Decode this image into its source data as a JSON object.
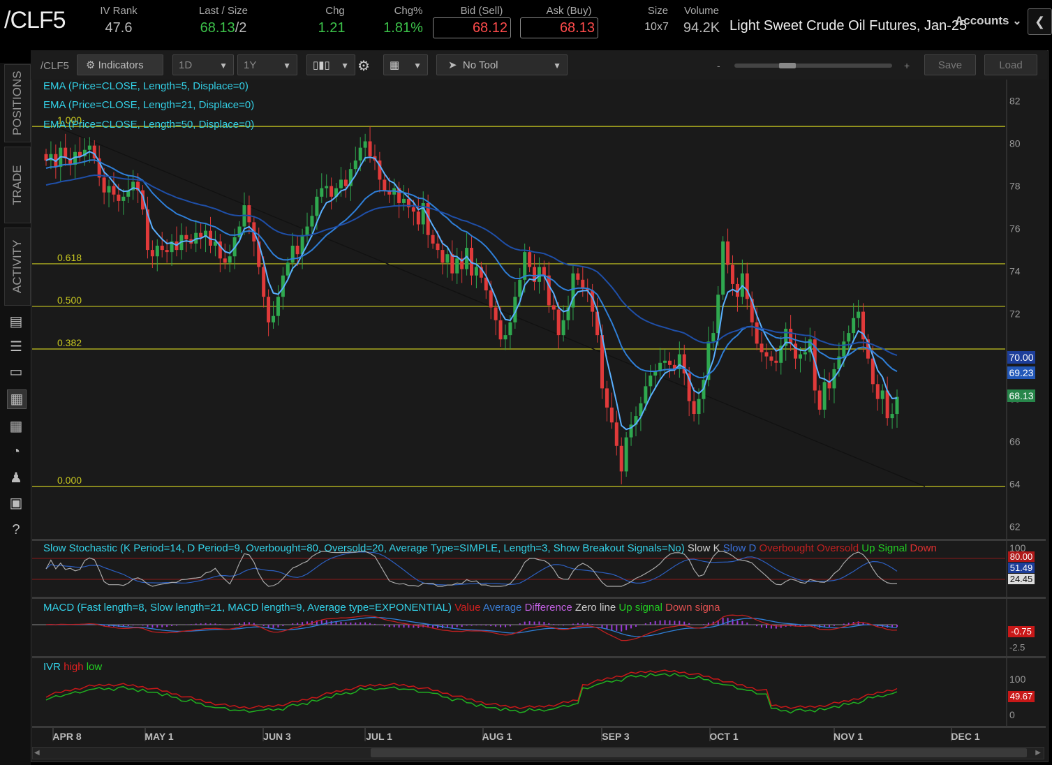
{
  "header": {
    "symbol": "/CLF5",
    "iv_rank": {
      "label": "IV Rank",
      "value": "47.6"
    },
    "last_size": {
      "label": "Last / Size",
      "value": "68.13",
      "size": "/2"
    },
    "chg": {
      "label": "Chg",
      "value": "1.21"
    },
    "chg_pct": {
      "label": "Chg%",
      "value": "1.81%"
    },
    "bid": {
      "label": "Bid (Sell)",
      "value": "68.12"
    },
    "ask": {
      "label": "Ask (Buy)",
      "value": "68.13"
    },
    "size": {
      "label": "Size",
      "value": "10x7"
    },
    "volume": {
      "label": "Volume",
      "value": "94.2K"
    },
    "description": "Light Sweet Crude Oil Futures, Jan-25",
    "accounts_label": "Accounts"
  },
  "sidebar": {
    "tabs": [
      "POSITIONS",
      "TRADE",
      "ACTIVITY"
    ]
  },
  "toolbar": {
    "symbol": "/CLF5",
    "indicators_label": "Indicators",
    "aggregation": "1D",
    "timeframe": "1Y",
    "tool": "No Tool",
    "zoom_minus": "-",
    "zoom_plus": "+",
    "save_label": "Save",
    "load_label": "Load"
  },
  "studies": {
    "ema": [
      "EMA (Price=CLOSE, Length=5, Displace=0)",
      "EMA (Price=CLOSE, Length=21, Displace=0)",
      "EMA (Price=CLOSE, Length=50, Displace=0)"
    ],
    "stoch": {
      "title": "Slow Stochastic (K Period=14, D Period=9, Overbought=80, Oversold=20, Average Type=SIMPLE, Length=3, Show Breakout Signals=No)",
      "legend": [
        "Slow K",
        "Slow D",
        "Overbought",
        "Oversold",
        "Up Signal",
        "Down"
      ],
      "axis_top": "100",
      "overbought": "80.00",
      "slow_d": "51.49",
      "slow_k": "24.45"
    },
    "macd": {
      "title": "MACD (Fast length=8, Slow length=21, MACD length=9, Average type=EXPONENTIAL)",
      "legend": [
        "Value",
        "Average",
        "Difference",
        "Zero line",
        "Up signal",
        "Down signa"
      ],
      "value_label": "-0.75",
      "axis_low": "-2.5"
    },
    "ivr": {
      "title": "IVR",
      "legend": [
        "high",
        "low"
      ],
      "axis_top": "100",
      "value_label": "49.67",
      "axis_zero": "0"
    }
  },
  "colors": {
    "up": "#2fa84f",
    "down": "#e03a3a",
    "ema5": "#5ab0ff",
    "ema21": "#2f7fd8",
    "ema50": "#1f4fa8",
    "fib": "#c8c820",
    "study_title": "#33d0e6"
  },
  "chart_data": {
    "type": "candlestick",
    "title": "/CLF5",
    "y_axis_ticks": [
      62,
      64,
      66,
      68,
      70,
      72,
      74,
      76,
      78,
      80,
      82
    ],
    "ylim": [
      61.5,
      83
    ],
    "x_axis_ticks": [
      "APR 8",
      "MAY 1",
      "JUN 3",
      "JUL 1",
      "AUG 1",
      "SEP 3",
      "OCT 1",
      "NOV 1",
      "DEC 1"
    ],
    "price_labels": {
      "ema50": "70.00",
      "ema21": "69.23",
      "last": "68.13"
    },
    "fib_levels": [
      {
        "label": "1.000",
        "value": 80.8
      },
      {
        "label": "0.618",
        "value": 74.35
      },
      {
        "label": "0.500",
        "value": 72.35
      },
      {
        "label": "0.382",
        "value": 70.35
      },
      {
        "label": "0.000",
        "value": 63.9
      }
    ],
    "closes": [
      79.2,
      79.5,
      78.9,
      79.8,
      79.3,
      79.0,
      79.6,
      79.4,
      79.7,
      79.9,
      79.3,
      78.4,
      77.7,
      78.0,
      77.6,
      77.3,
      77.5,
      77.8,
      78.2,
      77.8,
      76.9,
      75.0,
      74.7,
      75.2,
      75.0,
      74.9,
      75.4,
      75.0,
      75.7,
      75.5,
      75.3,
      75.8,
      75.6,
      75.9,
      75.2,
      75.4,
      74.6,
      74.4,
      74.7,
      75.6,
      76.1,
      77.1,
      76.3,
      75.4,
      74.2,
      72.8,
      71.6,
      71.9,
      72.8,
      73.8,
      74.4,
      75.2,
      74.8,
      75.7,
      76.1,
      76.6,
      77.5,
      77.9,
      78.0,
      77.5,
      77.9,
      78.3,
      78.0,
      78.8,
      79.2,
      79.8,
      80.1,
      79.4,
      79.2,
      78.3,
      77.8,
      77.6,
      77.9,
      77.2,
      77.4,
      77.0,
      76.8,
      76.2,
      77.2,
      75.7,
      75.3,
      75.0,
      74.4,
      74.8,
      73.9,
      74.6,
      74.1,
      75.1,
      73.8,
      74.2,
      73.7,
      73.1,
      72.3,
      71.7,
      70.8,
      71.0,
      71.6,
      72.8,
      73.6,
      74.9,
      74.2,
      73.5,
      74.2,
      73.8,
      72.4,
      72.2,
      71.0,
      71.7,
      72.3,
      73.9,
      73.6,
      73.2,
      73.1,
      72.1,
      71.0,
      68.5,
      67.6,
      66.9,
      65.8,
      64.6,
      66.2,
      66.8,
      67.2,
      67.8,
      68.6,
      69.1,
      69.3,
      69.7,
      69.8,
      69.6,
      69.4,
      70.1,
      69.2,
      67.9,
      67.3,
      68.0,
      68.9,
      70.7,
      71.1,
      72.9,
      75.4,
      74.3,
      73.4,
      72.8,
      73.9,
      72.7,
      71.6,
      70.6,
      70.2,
      70.0,
      69.8,
      69.7,
      70.5,
      71.3,
      70.6,
      69.9,
      70.1,
      70.2,
      70.8,
      68.4,
      67.5,
      68.8,
      68.5,
      69.4,
      70.0,
      70.7,
      71.1,
      71.8,
      72.1,
      70.8,
      69.9,
      68.7,
      68.0,
      68.4,
      67.1,
      67.3,
      68.1
    ],
    "candle_dates_start": "APR 8"
  }
}
